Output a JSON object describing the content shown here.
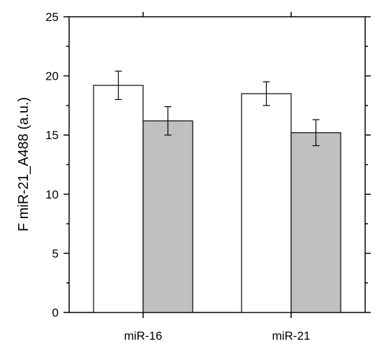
{
  "chart_data": {
    "type": "bar",
    "title": "",
    "xlabel": "",
    "ylabel": "F miR-21_A488 (a.u.)",
    "ylim": [
      0,
      25
    ],
    "yticks": [
      0,
      5,
      10,
      15,
      20,
      25
    ],
    "y_minor_step": 2.5,
    "grid": false,
    "legend": "none",
    "categories": [
      "miR-16",
      "miR-21"
    ],
    "series": [
      {
        "color": "#ffffff",
        "values": [
          19.2,
          18.5
        ],
        "errors": [
          1.2,
          1.0
        ]
      },
      {
        "color": "#c0c0c0",
        "values": [
          16.2,
          15.2
        ],
        "errors": [
          1.2,
          1.1
        ]
      }
    ]
  }
}
